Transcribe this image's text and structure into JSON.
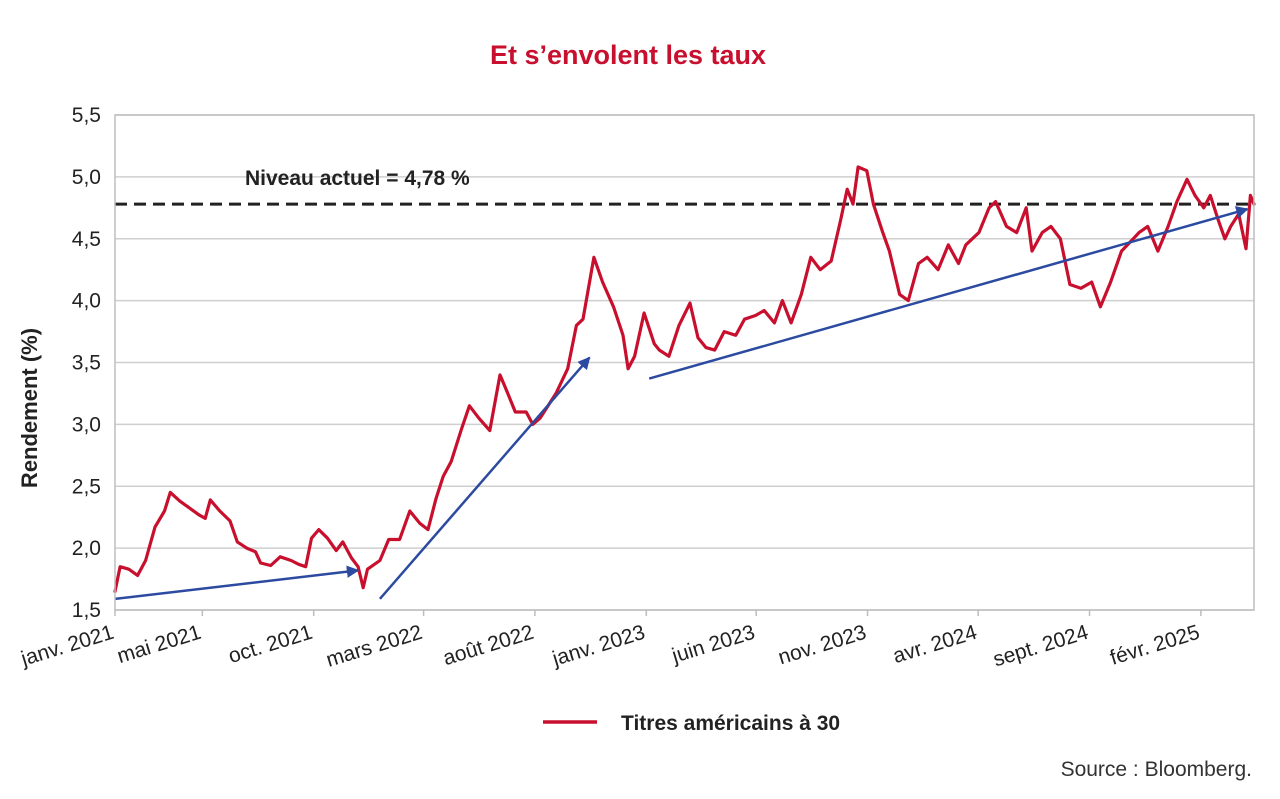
{
  "chart_data": {
    "type": "line",
    "title": "Et s’envolent les taux",
    "ylabel": "Rendement (%)",
    "xlabel": "",
    "ylim": [
      1.5,
      5.5
    ],
    "yticks": [
      "1,5",
      "2,0",
      "2,5",
      "3,0",
      "3,5",
      "4,0",
      "4,5",
      "5,0",
      "5,5"
    ],
    "xlim": [
      "2021-01-01",
      "2025-04-15"
    ],
    "xticks": [
      {
        "label": "janv. 2021",
        "date": "2021-01-01"
      },
      {
        "label": "mai 2021",
        "date": "2021-05-01"
      },
      {
        "label": "oct. 2021",
        "date": "2021-10-01"
      },
      {
        "label": "mars 2022",
        "date": "2022-03-01"
      },
      {
        "label": "août 2022",
        "date": "2022-08-01"
      },
      {
        "label": "janv. 2023",
        "date": "2023-01-01"
      },
      {
        "label": "juin 2023",
        "date": "2023-06-01"
      },
      {
        "label": "nov. 2023",
        "date": "2023-11-01"
      },
      {
        "label": "avr. 2024",
        "date": "2024-04-01"
      },
      {
        "label": "sept. 2024",
        "date": "2024-09-01"
      },
      {
        "label": "févr. 2025",
        "date": "2025-02-01"
      }
    ],
    "grid": "horizontal",
    "series": [
      {
        "name": "Titres américains à 30",
        "color": "#c8102e",
        "points": [
          [
            "2021-01-01",
            1.65
          ],
          [
            "2021-01-08",
            1.85
          ],
          [
            "2021-01-20",
            1.83
          ],
          [
            "2021-02-01",
            1.78
          ],
          [
            "2021-02-12",
            1.9
          ],
          [
            "2021-02-25",
            2.17
          ],
          [
            "2021-03-10",
            2.3
          ],
          [
            "2021-03-18",
            2.45
          ],
          [
            "2021-03-31",
            2.38
          ],
          [
            "2021-04-12",
            2.33
          ],
          [
            "2021-04-26",
            2.27
          ],
          [
            "2021-05-05",
            2.24
          ],
          [
            "2021-05-12",
            2.39
          ],
          [
            "2021-05-25",
            2.3
          ],
          [
            "2021-06-08",
            2.22
          ],
          [
            "2021-06-18",
            2.05
          ],
          [
            "2021-07-01",
            2.0
          ],
          [
            "2021-07-13",
            1.97
          ],
          [
            "2021-07-20",
            1.88
          ],
          [
            "2021-08-03",
            1.86
          ],
          [
            "2021-08-16",
            1.93
          ],
          [
            "2021-08-31",
            1.9
          ],
          [
            "2021-09-10",
            1.87
          ],
          [
            "2021-09-20",
            1.85
          ],
          [
            "2021-09-28",
            2.08
          ],
          [
            "2021-10-08",
            2.15
          ],
          [
            "2021-10-20",
            2.08
          ],
          [
            "2021-11-01",
            1.98
          ],
          [
            "2021-11-10",
            2.05
          ],
          [
            "2021-11-22",
            1.92
          ],
          [
            "2021-12-01",
            1.85
          ],
          [
            "2021-12-08",
            1.68
          ],
          [
            "2021-12-14",
            1.83
          ],
          [
            "2021-12-31",
            1.9
          ],
          [
            "2022-01-12",
            2.07
          ],
          [
            "2022-01-27",
            2.07
          ],
          [
            "2022-02-10",
            2.3
          ],
          [
            "2022-02-24",
            2.2
          ],
          [
            "2022-03-07",
            2.15
          ],
          [
            "2022-03-18",
            2.4
          ],
          [
            "2022-03-28",
            2.58
          ],
          [
            "2022-04-08",
            2.7
          ],
          [
            "2022-04-22",
            2.96
          ],
          [
            "2022-05-03",
            3.15
          ],
          [
            "2022-05-16",
            3.05
          ],
          [
            "2022-05-31",
            2.95
          ],
          [
            "2022-06-14",
            3.4
          ],
          [
            "2022-06-24",
            3.26
          ],
          [
            "2022-07-05",
            3.1
          ],
          [
            "2022-07-20",
            3.1
          ],
          [
            "2022-07-29",
            3.0
          ],
          [
            "2022-08-08",
            3.05
          ],
          [
            "2022-08-30",
            3.25
          ],
          [
            "2022-09-15",
            3.45
          ],
          [
            "2022-09-27",
            3.8
          ],
          [
            "2022-10-06",
            3.85
          ],
          [
            "2022-10-21",
            4.35
          ],
          [
            "2022-11-02",
            4.15
          ],
          [
            "2022-11-17",
            3.95
          ],
          [
            "2022-11-30",
            3.72
          ],
          [
            "2022-12-07",
            3.45
          ],
          [
            "2022-12-16",
            3.55
          ],
          [
            "2022-12-29",
            3.9
          ],
          [
            "2023-01-12",
            3.65
          ],
          [
            "2023-01-19",
            3.6
          ],
          [
            "2023-02-01",
            3.55
          ],
          [
            "2023-02-15",
            3.8
          ],
          [
            "2023-03-02",
            3.98
          ],
          [
            "2023-03-13",
            3.7
          ],
          [
            "2023-03-24",
            3.62
          ],
          [
            "2023-04-05",
            3.6
          ],
          [
            "2023-04-18",
            3.75
          ],
          [
            "2023-05-04",
            3.72
          ],
          [
            "2023-05-16",
            3.85
          ],
          [
            "2023-05-31",
            3.88
          ],
          [
            "2023-06-12",
            3.92
          ],
          [
            "2023-06-26",
            3.82
          ],
          [
            "2023-07-07",
            4.0
          ],
          [
            "2023-07-19",
            3.82
          ],
          [
            "2023-08-02",
            4.05
          ],
          [
            "2023-08-15",
            4.35
          ],
          [
            "2023-08-28",
            4.25
          ],
          [
            "2023-09-12",
            4.32
          ],
          [
            "2023-09-25",
            4.65
          ],
          [
            "2023-10-04",
            4.9
          ],
          [
            "2023-10-12",
            4.78
          ],
          [
            "2023-10-19",
            5.08
          ],
          [
            "2023-10-31",
            5.05
          ],
          [
            "2023-11-09",
            4.78
          ],
          [
            "2023-11-22",
            4.55
          ],
          [
            "2023-12-01",
            4.4
          ],
          [
            "2023-12-15",
            4.05
          ],
          [
            "2023-12-27",
            4.0
          ],
          [
            "2024-01-10",
            4.3
          ],
          [
            "2024-01-22",
            4.35
          ],
          [
            "2024-02-06",
            4.25
          ],
          [
            "2024-02-20",
            4.45
          ],
          [
            "2024-03-05",
            4.3
          ],
          [
            "2024-03-15",
            4.45
          ],
          [
            "2024-04-02",
            4.55
          ],
          [
            "2024-04-16",
            4.75
          ],
          [
            "2024-04-25",
            4.8
          ],
          [
            "2024-05-10",
            4.6
          ],
          [
            "2024-05-24",
            4.55
          ],
          [
            "2024-06-06",
            4.75
          ],
          [
            "2024-06-14",
            4.4
          ],
          [
            "2024-06-28",
            4.55
          ],
          [
            "2024-07-10",
            4.6
          ],
          [
            "2024-07-23",
            4.5
          ],
          [
            "2024-08-05",
            4.13
          ],
          [
            "2024-08-20",
            4.1
          ],
          [
            "2024-09-04",
            4.15
          ],
          [
            "2024-09-16",
            3.95
          ],
          [
            "2024-09-30",
            4.15
          ],
          [
            "2024-10-15",
            4.4
          ],
          [
            "2024-10-31",
            4.5
          ],
          [
            "2024-11-08",
            4.55
          ],
          [
            "2024-11-20",
            4.6
          ],
          [
            "2024-12-04",
            4.4
          ],
          [
            "2024-12-18",
            4.6
          ],
          [
            "2024-12-30",
            4.8
          ],
          [
            "2025-01-13",
            4.98
          ],
          [
            "2025-01-24",
            4.85
          ],
          [
            "2025-02-05",
            4.75
          ],
          [
            "2025-02-14",
            4.85
          ],
          [
            "2025-02-25",
            4.65
          ],
          [
            "2025-03-06",
            4.5
          ],
          [
            "2025-03-14",
            4.6
          ],
          [
            "2025-03-25",
            4.7
          ],
          [
            "2025-04-04",
            4.42
          ],
          [
            "2025-04-10",
            4.85
          ],
          [
            "2025-04-15",
            4.78
          ]
        ]
      }
    ],
    "reference_line": {
      "value": 4.78,
      "label": "Niveau actuel = 4,78 %",
      "style": "dashed",
      "color": "#222222"
    },
    "trend_arrows": {
      "color": "#2b4aa0",
      "arrows": [
        {
          "from": [
            "2021-01-01",
            1.59
          ],
          "to": [
            "2021-12-01",
            1.82
          ]
        },
        {
          "from": [
            "2021-12-31",
            1.59
          ],
          "to": [
            "2022-10-15",
            3.54
          ]
        },
        {
          "from": [
            "2023-01-05",
            3.37
          ],
          "to": [
            "2025-04-06",
            4.74
          ]
        }
      ]
    },
    "legend": {
      "position": "bottom",
      "entries": [
        "Titres américains à 30"
      ]
    },
    "source": "Source : Bloomberg."
  }
}
